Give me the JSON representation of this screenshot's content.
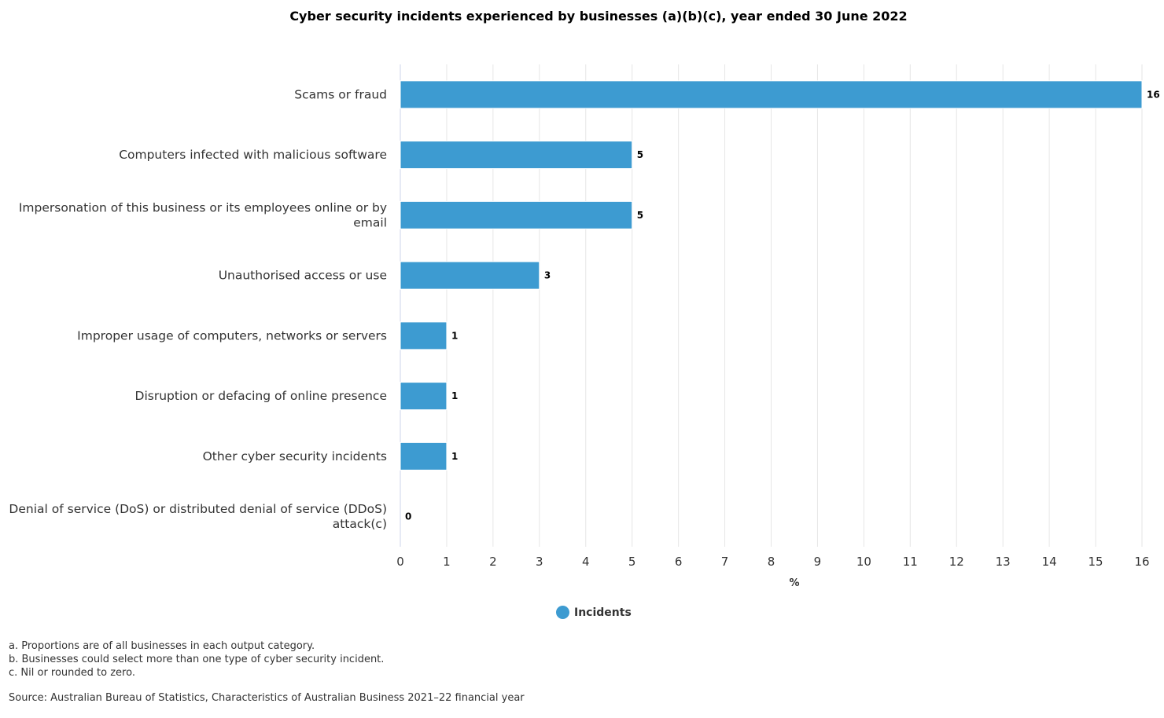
{
  "chart_data": {
    "type": "bar",
    "orientation": "horizontal",
    "title": "Cyber security incidents experienced by businesses (a)(b)(c), year ended 30 June 2022",
    "categories": [
      [
        "Scams or fraud"
      ],
      [
        "Computers infected with malicious software"
      ],
      [
        "Impersonation of this business or its employees online or by",
        "email"
      ],
      [
        "Unauthorised access or use"
      ],
      [
        "Improper usage of computers, networks or servers"
      ],
      [
        "Disruption or defacing of online presence"
      ],
      [
        "Other cyber security incidents"
      ],
      [
        "Denial of service (DoS) or distributed denial of service (DDoS)",
        "attack(c)"
      ]
    ],
    "series": [
      {
        "name": "Incidents",
        "values": [
          16,
          5,
          5,
          3,
          1,
          1,
          1,
          0
        ],
        "color": "#3d9bd1"
      }
    ],
    "xlabel": "%",
    "xlim": [
      0,
      16
    ],
    "xticks": [
      "0",
      "1",
      "2",
      "3",
      "4",
      "5",
      "6",
      "7",
      "8",
      "9",
      "10",
      "11",
      "12",
      "13",
      "14",
      "15",
      "16"
    ],
    "grid": "vertical",
    "legend": "bottom-center",
    "notes": [
      "a. Proportions are of all businesses in each output category.",
      "b. Businesses could select more than one type of cyber security incident.",
      "c. Nil or rounded to zero."
    ],
    "source": "Source: Australian Bureau of Statistics, Characteristics of Australian Business 2021–22 financial year"
  }
}
